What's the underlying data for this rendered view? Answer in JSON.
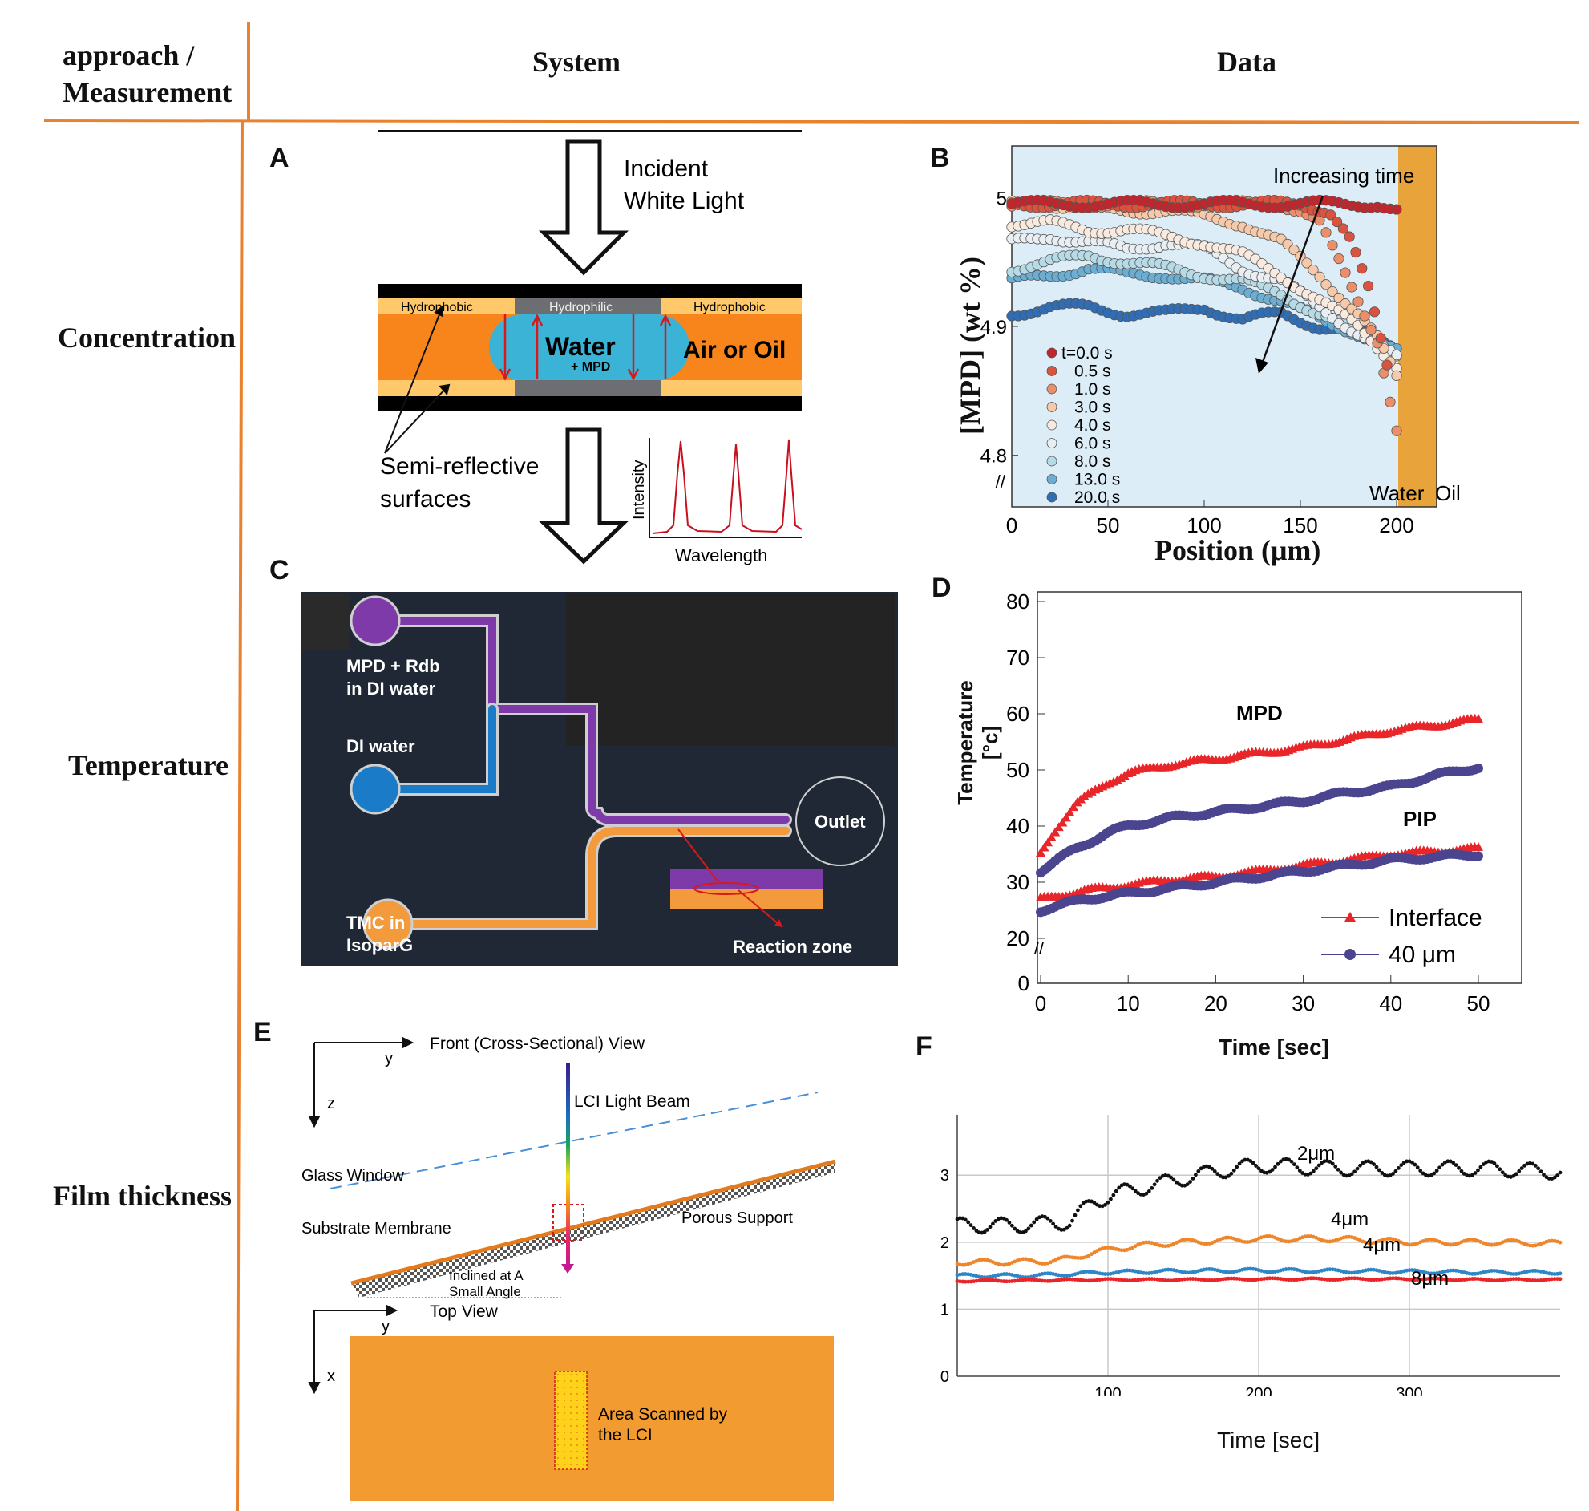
{
  "table": {
    "headers": {
      "approach": "approach /",
      "measurement": "Measurement",
      "system": "System",
      "data": "Data"
    },
    "rows": {
      "concentration": "Concentration",
      "temperature": "Temperature",
      "film_thickness": "Film thickness"
    },
    "colors": {
      "rule": "#e9822f"
    }
  },
  "panelA": {
    "letter": "A",
    "incident": [
      "Incident",
      "White Light"
    ],
    "hydrophobic_left": "Hydrophobic",
    "hydrophilic": "Hydrophilic",
    "hydrophobic_right": "Hydrophobic",
    "water": "Water",
    "mpd": "+ MPD",
    "air_oil": "Air or Oil",
    "semi": [
      "Semi-reflective",
      "surfaces"
    ],
    "inset_ylabel": "Intensity",
    "inset_xlabel": "Wavelength",
    "colors": {
      "orange": "#f7851b",
      "water": "#3bb3d6",
      "hydrophobic": "#ffc86b",
      "hydrophilic": "#6d6e71"
    }
  },
  "panelB": {
    "letter": "B",
    "annotation": "Increasing time",
    "water_label": "Water",
    "oil_label": "Oil",
    "legend": [
      "t=0.0 s",
      "0.5 s",
      "1.0 s",
      "3.0 s",
      "4.0 s",
      "6.0 s",
      "8.0 s",
      "13.0 s",
      "20.0 s"
    ],
    "legend_colors": [
      "#c0262c",
      "#d9533f",
      "#eb8e6a",
      "#f6c9a9",
      "#f8eadf",
      "#e8eef2",
      "#b6dbe6",
      "#6aaed3",
      "#2f6db5"
    ],
    "bg_color": "#dcedf8",
    "oil_color": "#e8a33a"
  },
  "panelC": {
    "letter": "C",
    "labels": {
      "mpd1": "MPD + Rdb",
      "mpd2": "in DI water",
      "di": "DI water",
      "tmc1": "TMC in",
      "tmc2": "IsoparG",
      "outlet": "Outlet",
      "reaction": "Reaction zone"
    },
    "colors": {
      "bg": "#1f2834",
      "purple": "#7d3aa8",
      "blue": "#1a7cc9",
      "orange": "#f39a3c"
    }
  },
  "panelE": {
    "letter": "E",
    "front": "Front (Cross-Sectional) View",
    "y1": "y",
    "z": "z",
    "beam": "LCI Light Beam",
    "glass": "Glass Window",
    "substrate": "Substrate Membrane",
    "porous": "Porous Support",
    "inclined1": "Inclined at A",
    "inclined2": "Small Angle",
    "top": "Top View",
    "y2": "y",
    "x": "x",
    "area1": "Area Scanned by",
    "area2": "the LCI",
    "colors": {
      "orange": "#f29b30",
      "area": "#ffd11a"
    }
  },
  "chart_data": [
    {
      "panel": "B",
      "type": "scatter",
      "xlabel": "Position (μm)",
      "ylabel": "[MPD] (wt %)",
      "xlim": [
        0,
        200
      ],
      "ylim": [
        4.76,
        5.04
      ],
      "xticks": [
        "0",
        "50",
        "100",
        "150",
        "200"
      ],
      "yticks": [
        "4.8",
        "4.9",
        "5"
      ],
      "y_axis_break": true,
      "series": [
        {
          "name": "t=0.0 s",
          "x": [
            0,
            20,
            40,
            60,
            80,
            100,
            120,
            140,
            160,
            175,
            190,
            200
          ],
          "y": [
            4.995,
            4.995,
            4.995,
            4.995,
            4.995,
            4.995,
            4.995,
            4.995,
            4.995,
            4.995,
            4.995,
            4.99
          ]
        },
        {
          "name": "0.5 s",
          "x": [
            0,
            20,
            40,
            60,
            80,
            100,
            120,
            140,
            150,
            165,
            175,
            185,
            190,
            195
          ],
          "y": [
            4.995,
            4.995,
            4.995,
            4.995,
            4.995,
            4.995,
            4.995,
            4.995,
            4.995,
            4.99,
            4.97,
            4.93,
            4.9,
            4.87
          ]
        },
        {
          "name": "1.0 s",
          "x": [
            0,
            20,
            40,
            60,
            80,
            100,
            120,
            140,
            150,
            160,
            170,
            180,
            190,
            200
          ],
          "y": [
            4.995,
            4.995,
            4.995,
            4.995,
            4.995,
            4.995,
            4.995,
            4.995,
            4.99,
            4.98,
            4.95,
            4.92,
            4.89,
            4.82
          ]
        },
        {
          "name": "3.0 s",
          "x": [
            0,
            20,
            40,
            60,
            80,
            100,
            120,
            140,
            160,
            170,
            180,
            190,
            200
          ],
          "y": [
            4.995,
            4.995,
            4.99,
            4.99,
            4.99,
            4.985,
            4.98,
            4.965,
            4.94,
            4.925,
            4.91,
            4.89,
            4.86
          ]
        },
        {
          "name": "4.0 s",
          "x": [
            0,
            20,
            40,
            60,
            80,
            100,
            120,
            140,
            160,
            180,
            200
          ],
          "y": [
            4.98,
            4.98,
            4.975,
            4.975,
            4.97,
            4.965,
            4.955,
            4.94,
            4.92,
            4.9,
            4.87
          ]
        },
        {
          "name": "6.0 s",
          "x": [
            0,
            20,
            40,
            60,
            80,
            100,
            120,
            140,
            160,
            180,
            200
          ],
          "y": [
            4.965,
            4.97,
            4.965,
            4.96,
            4.965,
            4.96,
            4.945,
            4.935,
            4.915,
            4.895,
            4.875
          ]
        },
        {
          "name": "8.0 s",
          "x": [
            0,
            20,
            40,
            60,
            80,
            100,
            120,
            140,
            160,
            180,
            200
          ],
          "y": [
            4.945,
            4.95,
            4.955,
            4.95,
            4.945,
            4.94,
            4.935,
            4.925,
            4.91,
            4.895,
            4.88
          ]
        },
        {
          "name": "13.0 s",
          "x": [
            0,
            20,
            40,
            60,
            80,
            100,
            120,
            140,
            160,
            180,
            200
          ],
          "y": [
            4.935,
            4.94,
            4.945,
            4.94,
            4.94,
            4.935,
            4.93,
            4.92,
            4.905,
            4.895,
            4.88
          ]
        },
        {
          "name": "20.0 s",
          "x": [
            0,
            20,
            40,
            60,
            80,
            100,
            120,
            140,
            160,
            180,
            200
          ],
          "y": [
            4.91,
            4.915,
            4.915,
            4.91,
            4.91,
            4.915,
            4.905,
            4.91,
            4.9,
            4.895,
            4.885
          ]
        }
      ]
    },
    {
      "panel": "D",
      "type": "scatter",
      "xlabel": "Time [sec]",
      "ylabel": "Temperature [°c]",
      "xlim": [
        0,
        50
      ],
      "ylim": [
        0,
        80
      ],
      "xticks": [
        "0",
        "10",
        "20",
        "30",
        "40",
        "50"
      ],
      "yticks": [
        "0",
        "20",
        "30",
        "40",
        "50",
        "60",
        "70",
        "80"
      ],
      "y_axis_break": true,
      "annotations": [
        "MPD",
        "PIP"
      ],
      "legend": [
        "Interface",
        "40 μm"
      ],
      "series": [
        {
          "name": "Interface",
          "group": "MPD",
          "x": [
            0,
            2,
            4,
            6,
            8,
            10,
            15,
            20,
            25,
            30,
            35,
            40,
            45,
            50
          ],
          "y": [
            35,
            40,
            44,
            46,
            48,
            49.5,
            51,
            52,
            53,
            54,
            55.5,
            57,
            58,
            59
          ]
        },
        {
          "name": "40 μm",
          "group": "MPD",
          "x": [
            0,
            2,
            4,
            6,
            8,
            10,
            15,
            20,
            25,
            30,
            35,
            40,
            45,
            50
          ],
          "y": [
            32,
            34,
            36,
            37.5,
            39,
            40,
            41.5,
            42.5,
            43.5,
            44.5,
            46,
            47,
            49,
            50.5
          ]
        },
        {
          "name": "Interface",
          "group": "PIP",
          "x": [
            0,
            5,
            10,
            15,
            20,
            25,
            30,
            35,
            40,
            45,
            50
          ],
          "y": [
            27,
            28.5,
            29.5,
            30.5,
            31,
            32,
            33,
            34,
            35,
            35.5,
            36
          ]
        },
        {
          "name": "40 μm",
          "group": "PIP",
          "x": [
            0,
            5,
            10,
            15,
            20,
            25,
            30,
            35,
            40,
            45,
            50
          ],
          "y": [
            25,
            27,
            28,
            29,
            30,
            31,
            32,
            33,
            34,
            34.5,
            35
          ]
        }
      ]
    },
    {
      "panel": "F",
      "type": "scatter",
      "xlabel": "Time [sec]",
      "ylabel": "",
      "xlim": [
        0,
        400
      ],
      "ylim": [
        0,
        3.9
      ],
      "xticks": [
        "100",
        "200",
        "300"
      ],
      "yticks": [
        "0",
        "1",
        "2",
        "3"
      ],
      "grid": true,
      "series": [
        {
          "name": "2μm",
          "x": [
            0,
            20,
            40,
            60,
            75,
            90,
            110,
            130,
            150,
            170,
            200,
            250,
            300,
            350,
            400
          ],
          "y": [
            2.25,
            2.25,
            2.25,
            2.28,
            2.3,
            2.6,
            2.75,
            2.85,
            2.95,
            3.05,
            3.15,
            3.1,
            3.1,
            3.1,
            3.05
          ]
        },
        {
          "name": "4μm",
          "x": [
            0,
            30,
            60,
            75,
            90,
            120,
            150,
            200,
            250,
            300,
            350,
            400
          ],
          "y": [
            1.7,
            1.7,
            1.72,
            1.75,
            1.85,
            1.95,
            2.0,
            2.05,
            2.05,
            2.0,
            2.0,
            1.98
          ]
        },
        {
          "name": "4μm",
          "x": [
            0,
            50,
            100,
            150,
            200,
            250,
            300,
            350,
            400
          ],
          "y": [
            1.5,
            1.5,
            1.55,
            1.57,
            1.58,
            1.57,
            1.56,
            1.55,
            1.55
          ]
        },
        {
          "name": "8μm",
          "x": [
            0,
            50,
            100,
            150,
            200,
            250,
            300,
            350,
            400
          ],
          "y": [
            1.42,
            1.43,
            1.44,
            1.44,
            1.45,
            1.45,
            1.45,
            1.44,
            1.44
          ]
        }
      ],
      "series_colors": [
        "#111111",
        "#f0862a",
        "#2c86c7",
        "#e8262a"
      ]
    }
  ]
}
